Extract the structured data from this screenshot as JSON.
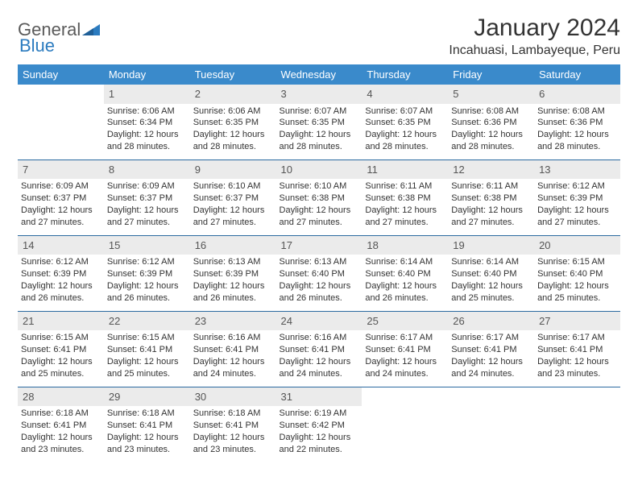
{
  "logo": {
    "word1": "General",
    "word2": "Blue"
  },
  "title": "January 2024",
  "subtitle": "Incahuasi, Lambayeque, Peru",
  "colors": {
    "header_bg": "#3a8acb",
    "header_text": "#ffffff",
    "daynum_bg": "#ebebeb",
    "rule": "#2b6aa0",
    "logo_gray": "#5a5a5a",
    "logo_blue": "#2b7bbf"
  },
  "weekdays": [
    "Sunday",
    "Monday",
    "Tuesday",
    "Wednesday",
    "Thursday",
    "Friday",
    "Saturday"
  ],
  "weeks": [
    [
      null,
      {
        "n": "1",
        "sr": "6:06 AM",
        "ss": "6:34 PM",
        "dl": "12 hours and 28 minutes."
      },
      {
        "n": "2",
        "sr": "6:06 AM",
        "ss": "6:35 PM",
        "dl": "12 hours and 28 minutes."
      },
      {
        "n": "3",
        "sr": "6:07 AM",
        "ss": "6:35 PM",
        "dl": "12 hours and 28 minutes."
      },
      {
        "n": "4",
        "sr": "6:07 AM",
        "ss": "6:35 PM",
        "dl": "12 hours and 28 minutes."
      },
      {
        "n": "5",
        "sr": "6:08 AM",
        "ss": "6:36 PM",
        "dl": "12 hours and 28 minutes."
      },
      {
        "n": "6",
        "sr": "6:08 AM",
        "ss": "6:36 PM",
        "dl": "12 hours and 28 minutes."
      }
    ],
    [
      {
        "n": "7",
        "sr": "6:09 AM",
        "ss": "6:37 PM",
        "dl": "12 hours and 27 minutes."
      },
      {
        "n": "8",
        "sr": "6:09 AM",
        "ss": "6:37 PM",
        "dl": "12 hours and 27 minutes."
      },
      {
        "n": "9",
        "sr": "6:10 AM",
        "ss": "6:37 PM",
        "dl": "12 hours and 27 minutes."
      },
      {
        "n": "10",
        "sr": "6:10 AM",
        "ss": "6:38 PM",
        "dl": "12 hours and 27 minutes."
      },
      {
        "n": "11",
        "sr": "6:11 AM",
        "ss": "6:38 PM",
        "dl": "12 hours and 27 minutes."
      },
      {
        "n": "12",
        "sr": "6:11 AM",
        "ss": "6:38 PM",
        "dl": "12 hours and 27 minutes."
      },
      {
        "n": "13",
        "sr": "6:12 AM",
        "ss": "6:39 PM",
        "dl": "12 hours and 27 minutes."
      }
    ],
    [
      {
        "n": "14",
        "sr": "6:12 AM",
        "ss": "6:39 PM",
        "dl": "12 hours and 26 minutes."
      },
      {
        "n": "15",
        "sr": "6:12 AM",
        "ss": "6:39 PM",
        "dl": "12 hours and 26 minutes."
      },
      {
        "n": "16",
        "sr": "6:13 AM",
        "ss": "6:39 PM",
        "dl": "12 hours and 26 minutes."
      },
      {
        "n": "17",
        "sr": "6:13 AM",
        "ss": "6:40 PM",
        "dl": "12 hours and 26 minutes."
      },
      {
        "n": "18",
        "sr": "6:14 AM",
        "ss": "6:40 PM",
        "dl": "12 hours and 26 minutes."
      },
      {
        "n": "19",
        "sr": "6:14 AM",
        "ss": "6:40 PM",
        "dl": "12 hours and 25 minutes."
      },
      {
        "n": "20",
        "sr": "6:15 AM",
        "ss": "6:40 PM",
        "dl": "12 hours and 25 minutes."
      }
    ],
    [
      {
        "n": "21",
        "sr": "6:15 AM",
        "ss": "6:41 PM",
        "dl": "12 hours and 25 minutes."
      },
      {
        "n": "22",
        "sr": "6:15 AM",
        "ss": "6:41 PM",
        "dl": "12 hours and 25 minutes."
      },
      {
        "n": "23",
        "sr": "6:16 AM",
        "ss": "6:41 PM",
        "dl": "12 hours and 24 minutes."
      },
      {
        "n": "24",
        "sr": "6:16 AM",
        "ss": "6:41 PM",
        "dl": "12 hours and 24 minutes."
      },
      {
        "n": "25",
        "sr": "6:17 AM",
        "ss": "6:41 PM",
        "dl": "12 hours and 24 minutes."
      },
      {
        "n": "26",
        "sr": "6:17 AM",
        "ss": "6:41 PM",
        "dl": "12 hours and 24 minutes."
      },
      {
        "n": "27",
        "sr": "6:17 AM",
        "ss": "6:41 PM",
        "dl": "12 hours and 23 minutes."
      }
    ],
    [
      {
        "n": "28",
        "sr": "6:18 AM",
        "ss": "6:41 PM",
        "dl": "12 hours and 23 minutes."
      },
      {
        "n": "29",
        "sr": "6:18 AM",
        "ss": "6:41 PM",
        "dl": "12 hours and 23 minutes."
      },
      {
        "n": "30",
        "sr": "6:18 AM",
        "ss": "6:41 PM",
        "dl": "12 hours and 23 minutes."
      },
      {
        "n": "31",
        "sr": "6:19 AM",
        "ss": "6:42 PM",
        "dl": "12 hours and 22 minutes."
      },
      null,
      null,
      null
    ]
  ],
  "labels": {
    "sunrise": "Sunrise:",
    "sunset": "Sunset:",
    "daylight": "Daylight:"
  }
}
